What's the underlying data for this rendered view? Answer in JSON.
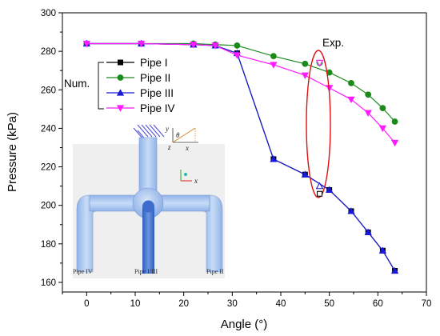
{
  "chart_data": {
    "type": "line",
    "xlabel": "Angle (°)",
    "ylabel": "Pressure (kPa)",
    "xlim": [
      -5,
      70
    ],
    "ylim": [
      155,
      300
    ],
    "x_ticks": [
      0,
      10,
      20,
      30,
      40,
      50,
      60,
      70
    ],
    "y_ticks": [
      160,
      180,
      200,
      220,
      240,
      260,
      280,
      300
    ],
    "grid": false,
    "legend": {
      "group_label": "Num.",
      "placement": "top-left"
    },
    "series": [
      {
        "name": "Pipe I",
        "color": "#000000",
        "marker": "square",
        "x": [
          0,
          11.25,
          22,
          26.5,
          31,
          38.5,
          45,
          50,
          54.5,
          58,
          61,
          63.5
        ],
        "y": [
          284,
          284,
          283.5,
          283,
          279,
          224,
          216,
          208,
          197,
          186,
          176.5,
          166
        ]
      },
      {
        "name": "Pipe II",
        "color": "#1a8a1a",
        "marker": "circle",
        "x": [
          0,
          11.25,
          22,
          26.5,
          31,
          38.5,
          45,
          50,
          54.5,
          58,
          61,
          63.5
        ],
        "y": [
          284,
          284,
          284,
          283.5,
          283,
          277.5,
          273.5,
          269,
          263.5,
          257.5,
          250.5,
          243.5
        ]
      },
      {
        "name": "Pipe III",
        "color": "#1a1ad6",
        "marker": "triangle-up",
        "x": [
          0,
          11.25,
          22,
          26.5,
          31,
          38.5,
          45,
          50,
          54.5,
          58,
          61,
          63.5
        ],
        "y": [
          284,
          284,
          283.5,
          283,
          279,
          224,
          216,
          208,
          197,
          186,
          176.5,
          166
        ]
      },
      {
        "name": "Pipe IV",
        "color": "#ff1aff",
        "marker": "triangle-down",
        "x": [
          0,
          11.25,
          22,
          26.5,
          31,
          38.5,
          45,
          50,
          54.5,
          58,
          61,
          63.5
        ],
        "y": [
          284,
          284,
          283.5,
          283,
          278,
          273,
          267.5,
          261,
          255,
          248,
          240,
          232.5
        ]
      }
    ],
    "experimental": {
      "label": "Exp.",
      "points": [
        {
          "series": "Pipe I",
          "marker": "square-open",
          "color": "#000000",
          "x": 48,
          "y": 206
        },
        {
          "series": "Pipe II",
          "marker": "circle-open",
          "color": "#1a8a1a",
          "x": 48,
          "y": 274
        },
        {
          "series": "Pipe III",
          "marker": "triangle-up-open",
          "color": "#1a1ad6",
          "x": 48,
          "y": 210
        },
        {
          "series": "Pipe IV",
          "marker": "triangle-down-open",
          "color": "#ff1aff",
          "x": 48,
          "y": 274
        }
      ],
      "highlight_color": "#e01010"
    },
    "inset": {
      "labels": [
        "Pipe IV",
        "Pipe I/III",
        "Pipe II"
      ],
      "axis_labels": [
        "x",
        "y",
        "z"
      ],
      "angle_symbol": "θ"
    }
  }
}
